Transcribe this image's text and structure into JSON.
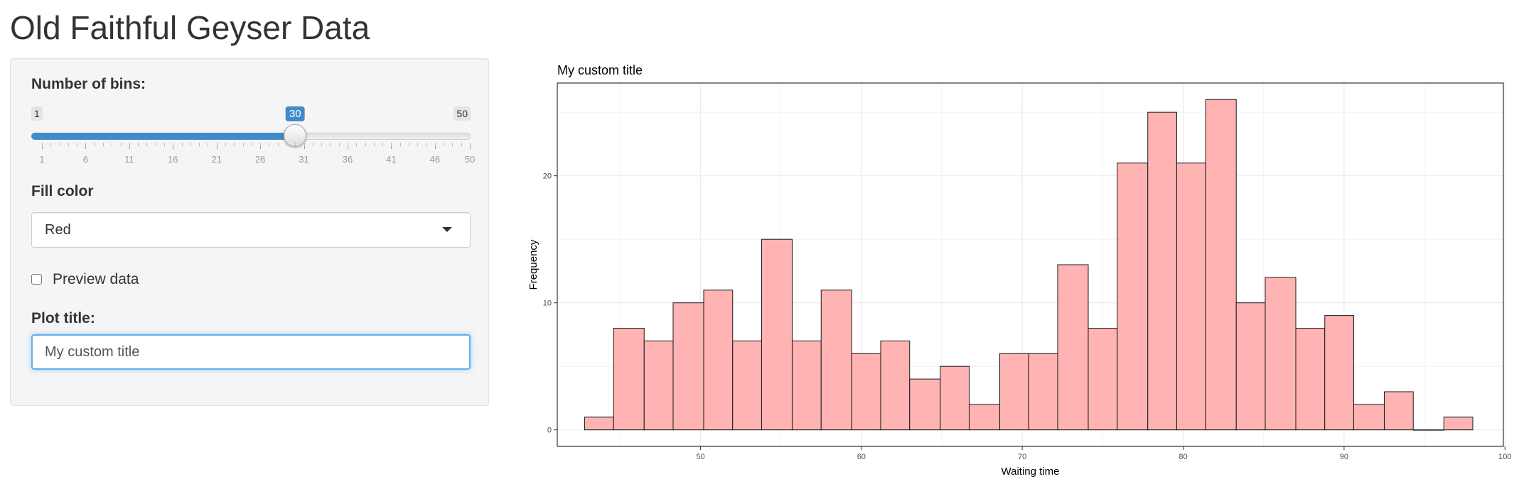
{
  "app": {
    "title": "Old Faithful Geyser Data"
  },
  "sidebar": {
    "bins": {
      "label": "Number of bins:",
      "min": 1,
      "max": 50,
      "value": 30,
      "min_label": "1",
      "max_label": "50",
      "value_label": "30",
      "tick_labels": [
        "1",
        "6",
        "11",
        "16",
        "21",
        "26",
        "31",
        "36",
        "41",
        "46",
        "50"
      ]
    },
    "fill_color": {
      "label": "Fill color",
      "selected": "Red"
    },
    "preview": {
      "label": "Preview data",
      "checked": false
    },
    "plot_title": {
      "label": "Plot title:",
      "value": "My custom title"
    }
  },
  "colors": {
    "accent": "#428bca",
    "bar_fill": "#ffb3b3",
    "bar_stroke": "#1a1a1a"
  },
  "chart_data": {
    "type": "bar",
    "title": "My custom title",
    "xlabel": "Waiting time",
    "ylabel": "Frequency",
    "xlim": [
      41.1,
      99.9
    ],
    "ylim": [
      -1.3,
      27.3
    ],
    "x_ticks": [
      50,
      60,
      70,
      80,
      90,
      100
    ],
    "y_ticks": [
      0,
      10,
      20
    ],
    "grid": true,
    "bin_edges": [
      42.8,
      44.6,
      46.5,
      48.3,
      50.2,
      52.0,
      53.8,
      55.7,
      57.5,
      59.4,
      61.2,
      63.0,
      64.9,
      66.7,
      68.6,
      70.4,
      72.2,
      74.1,
      75.9,
      77.8,
      79.6,
      81.4,
      83.3,
      85.1,
      87.0,
      88.8,
      90.6,
      92.5,
      94.3,
      96.2,
      98.0
    ],
    "values": [
      1,
      8,
      7,
      10,
      11,
      7,
      15,
      7,
      11,
      6,
      7,
      4,
      5,
      2,
      6,
      6,
      13,
      8,
      21,
      25,
      21,
      26,
      10,
      12,
      8,
      9,
      2,
      3,
      0,
      1
    ]
  }
}
